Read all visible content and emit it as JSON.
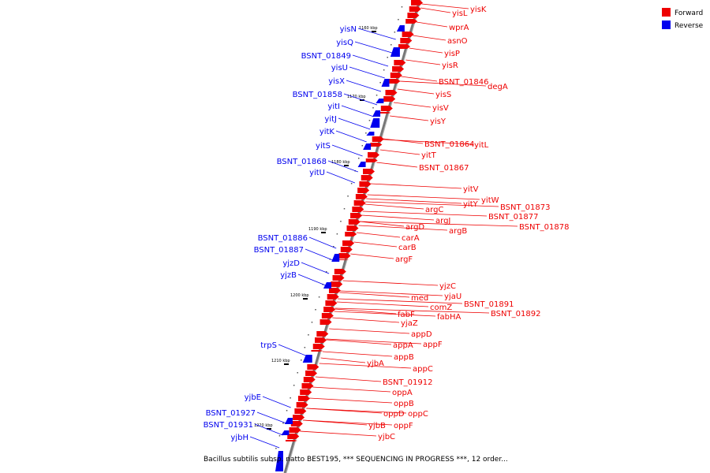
{
  "legend": {
    "forward_label": "Forward",
    "reverse_label": "Reverse",
    "forward_color": "#ee0000",
    "reverse_color": "#0000ee"
  },
  "caption": "Bacillus subtilis subsp. natto BEST195, *** SEQUENCING IN PROGRESS ***, 12 order...",
  "axis_ticks": [
    "1160 kbp",
    "1170 kbp",
    "1180 kbp",
    "1190 kbp",
    "1200 kbp",
    "1210 kbp",
    "1220 kbp"
  ],
  "forward_genes": [
    "yisK",
    "yisL",
    "wprA",
    "asnO",
    "yisP",
    "yisR",
    "BSNT_01846",
    "degA",
    "yisS",
    "yisV",
    "yisY",
    "BSNT_01864",
    "yitL",
    "yitT",
    "BSNT_01867",
    "yitV",
    "yitW",
    "yitY",
    "BSNT_01873",
    "argC",
    "BSNT_01877",
    "argJ",
    "BSNT_01878",
    "argD",
    "argB",
    "carA",
    "carB",
    "argF",
    "yjzC",
    "yjaU",
    "med",
    "BSNT_01891",
    "comZ",
    "BSNT_01892",
    "fabF",
    "fabHA",
    "yjaZ",
    "appD",
    "appF",
    "appA",
    "appB",
    "yjbA",
    "appC",
    "BSNT_01912",
    "oppA",
    "oppB",
    "oppD",
    "oppC",
    "oppF",
    "yjbB",
    "yjbC"
  ],
  "reverse_genes": [
    "yisN",
    "yisQ",
    "BSNT_01849",
    "yisU",
    "yisX",
    "BSNT_01858",
    "yitI",
    "yitJ",
    "yitK",
    "yitS",
    "BSNT_01868",
    "yitU",
    "BSNT_01886",
    "BSNT_01887",
    "yjzD",
    "yjzB",
    "trpS",
    "yjbE",
    "BSNT_01927",
    "BSNT_01931",
    "yjbH"
  ]
}
